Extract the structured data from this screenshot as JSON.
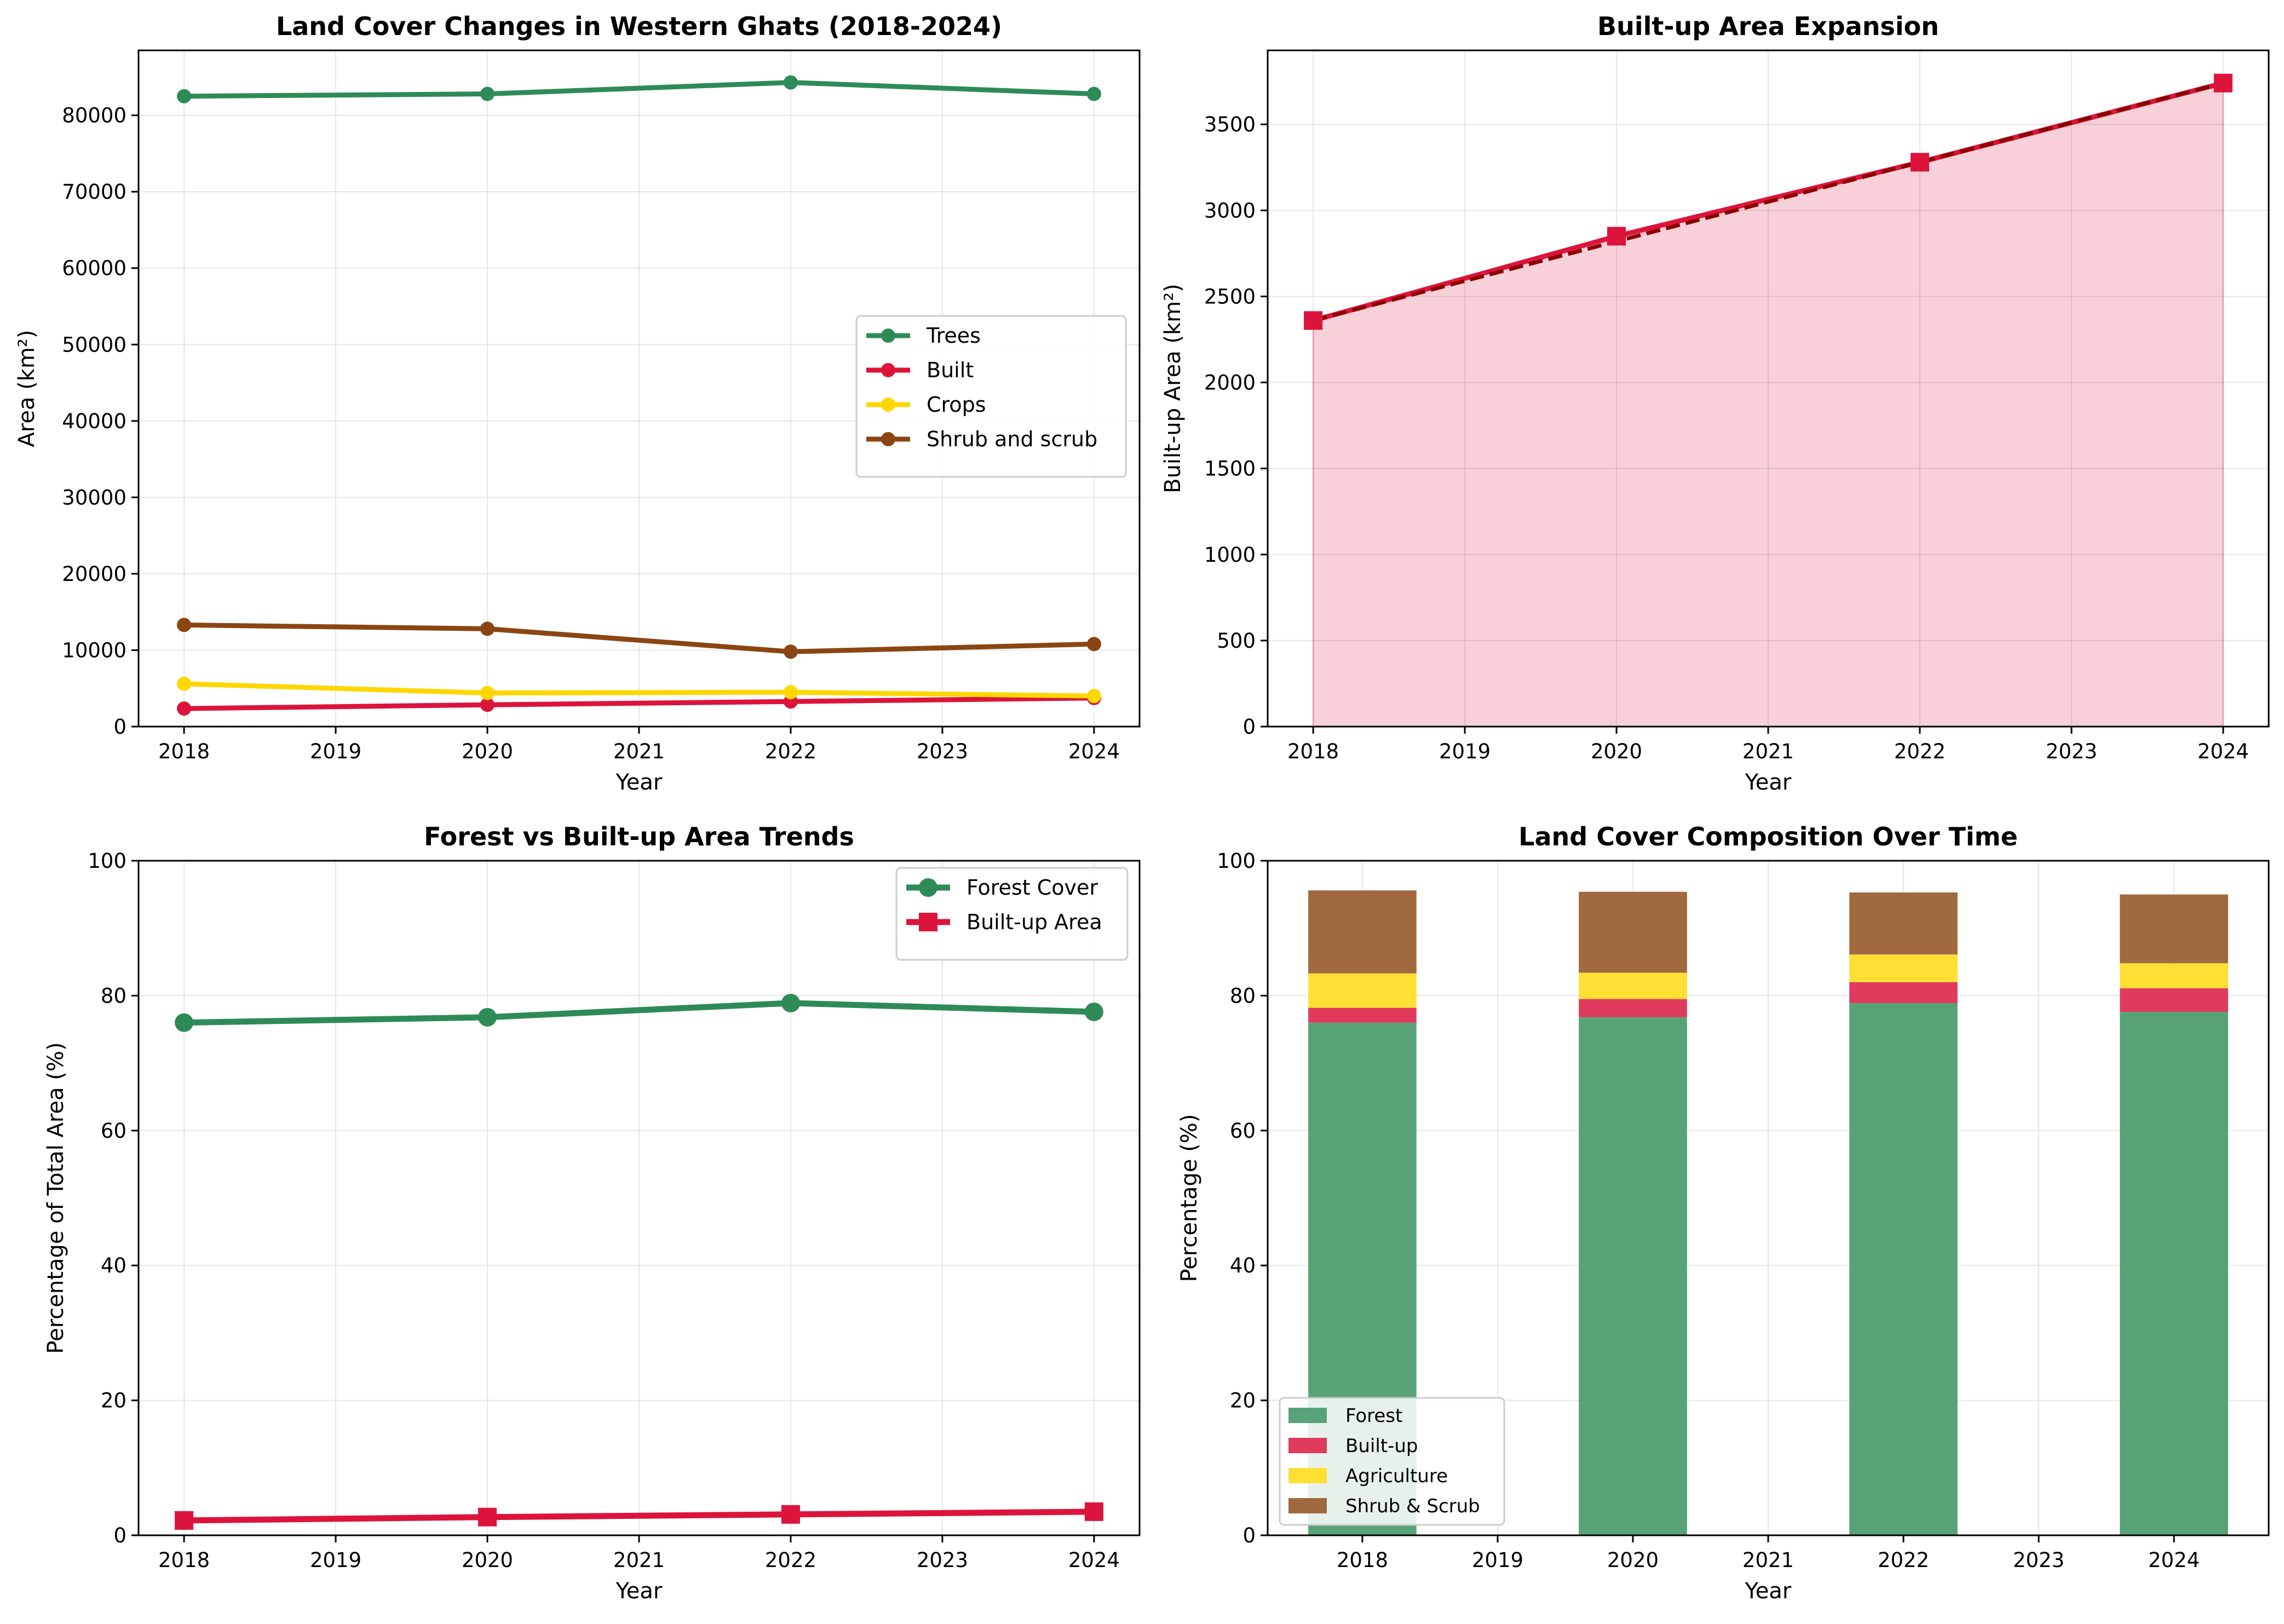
{
  "chart_data": [
    {
      "type": "line",
      "title": "Land Cover Changes in Western Ghats (2018-2024)",
      "xlabel": "Year",
      "ylabel": "Area (km²)",
      "xlim": [
        2017.7,
        2024.3
      ],
      "ylim": [
        0,
        88500
      ],
      "xticks": [
        2018,
        2019,
        2020,
        2021,
        2022,
        2023,
        2024
      ],
      "yticks": [
        0,
        10000,
        20000,
        30000,
        40000,
        50000,
        60000,
        70000,
        80000
      ],
      "grid": true,
      "legend_position": "center-right",
      "x": [
        2018,
        2020,
        2022,
        2024
      ],
      "series": [
        {
          "name": "Trees",
          "color": "#2e8b57",
          "values": [
            82500,
            82800,
            84300,
            82800
          ]
        },
        {
          "name": "Built",
          "color": "#dc143c",
          "values": [
            2360,
            2850,
            3280,
            3740
          ]
        },
        {
          "name": "Crops",
          "color": "#ffd700",
          "values": [
            5600,
            4400,
            4500,
            4000
          ]
        },
        {
          "name": "Shrub and scrub",
          "color": "#8b4513",
          "values": [
            13300,
            12800,
            9800,
            10800
          ]
        }
      ]
    },
    {
      "type": "area",
      "title": "Built-up Area Expansion",
      "xlabel": "Year",
      "ylabel": "Built-up Area (km²)",
      "xlim": [
        2017.7,
        2024.3
      ],
      "ylim": [
        0,
        3930
      ],
      "xticks": [
        2018,
        2019,
        2020,
        2021,
        2022,
        2023,
        2024
      ],
      "yticks": [
        0,
        500,
        1000,
        1500,
        2000,
        2500,
        3000,
        3500
      ],
      "grid": true,
      "x": [
        2018,
        2020,
        2022,
        2024
      ],
      "series": [
        {
          "name": "",
          "color": "#dc143c",
          "values": [
            2360,
            2850,
            3280,
            3740
          ]
        },
        {
          "name": "",
          "color": "#8b0000",
          "style": "dashed",
          "values": [
            2360,
            2820,
            3280,
            3740
          ]
        }
      ]
    },
    {
      "type": "line",
      "title": "Forest vs Built-up Area Trends",
      "xlabel": "Year",
      "ylabel": "Percentage of Total Area (%)",
      "xlim": [
        2017.7,
        2024.3
      ],
      "ylim": [
        0,
        100
      ],
      "xticks": [
        2018,
        2019,
        2020,
        2021,
        2022,
        2023,
        2024
      ],
      "yticks": [
        0,
        20,
        40,
        60,
        80,
        100
      ],
      "grid": true,
      "legend_position": "top-right",
      "x": [
        2018,
        2020,
        2022,
        2024
      ],
      "series": [
        {
          "name": "Forest Cover",
          "color": "#2e8b57",
          "values": [
            76.0,
            76.8,
            78.9,
            77.6
          ]
        },
        {
          "name": "Built-up Area",
          "color": "#dc143c",
          "values": [
            2.2,
            2.7,
            3.1,
            3.5
          ]
        }
      ]
    },
    {
      "type": "bar",
      "stacked": true,
      "title": "Land Cover Composition Over Time",
      "xlabel": "Year",
      "ylabel": "Percentage (%)",
      "xlim": [
        2017.3,
        2024.7
      ],
      "ylim": [
        0,
        100
      ],
      "xticks": [
        2018,
        2019,
        2020,
        2021,
        2022,
        2023,
        2024
      ],
      "yticks": [
        0,
        20,
        40,
        60,
        80,
        100
      ],
      "grid": true,
      "legend_position": "lower-left",
      "x": [
        2018,
        2020,
        2022,
        2024
      ],
      "series": [
        {
          "name": "Forest",
          "color": "#57a377",
          "values": [
            76.0,
            76.8,
            78.9,
            77.6
          ]
        },
        {
          "name": "Built-up",
          "color": "#e03b5d",
          "values": [
            2.2,
            2.7,
            3.1,
            3.5
          ]
        },
        {
          "name": "Agriculture",
          "color": "#ffdf34",
          "values": [
            5.1,
            3.9,
            4.1,
            3.7
          ]
        },
        {
          "name": "Shrub & Scrub",
          "color": "#a0693f",
          "values": [
            12.3,
            12.0,
            9.2,
            10.2
          ]
        }
      ]
    }
  ]
}
